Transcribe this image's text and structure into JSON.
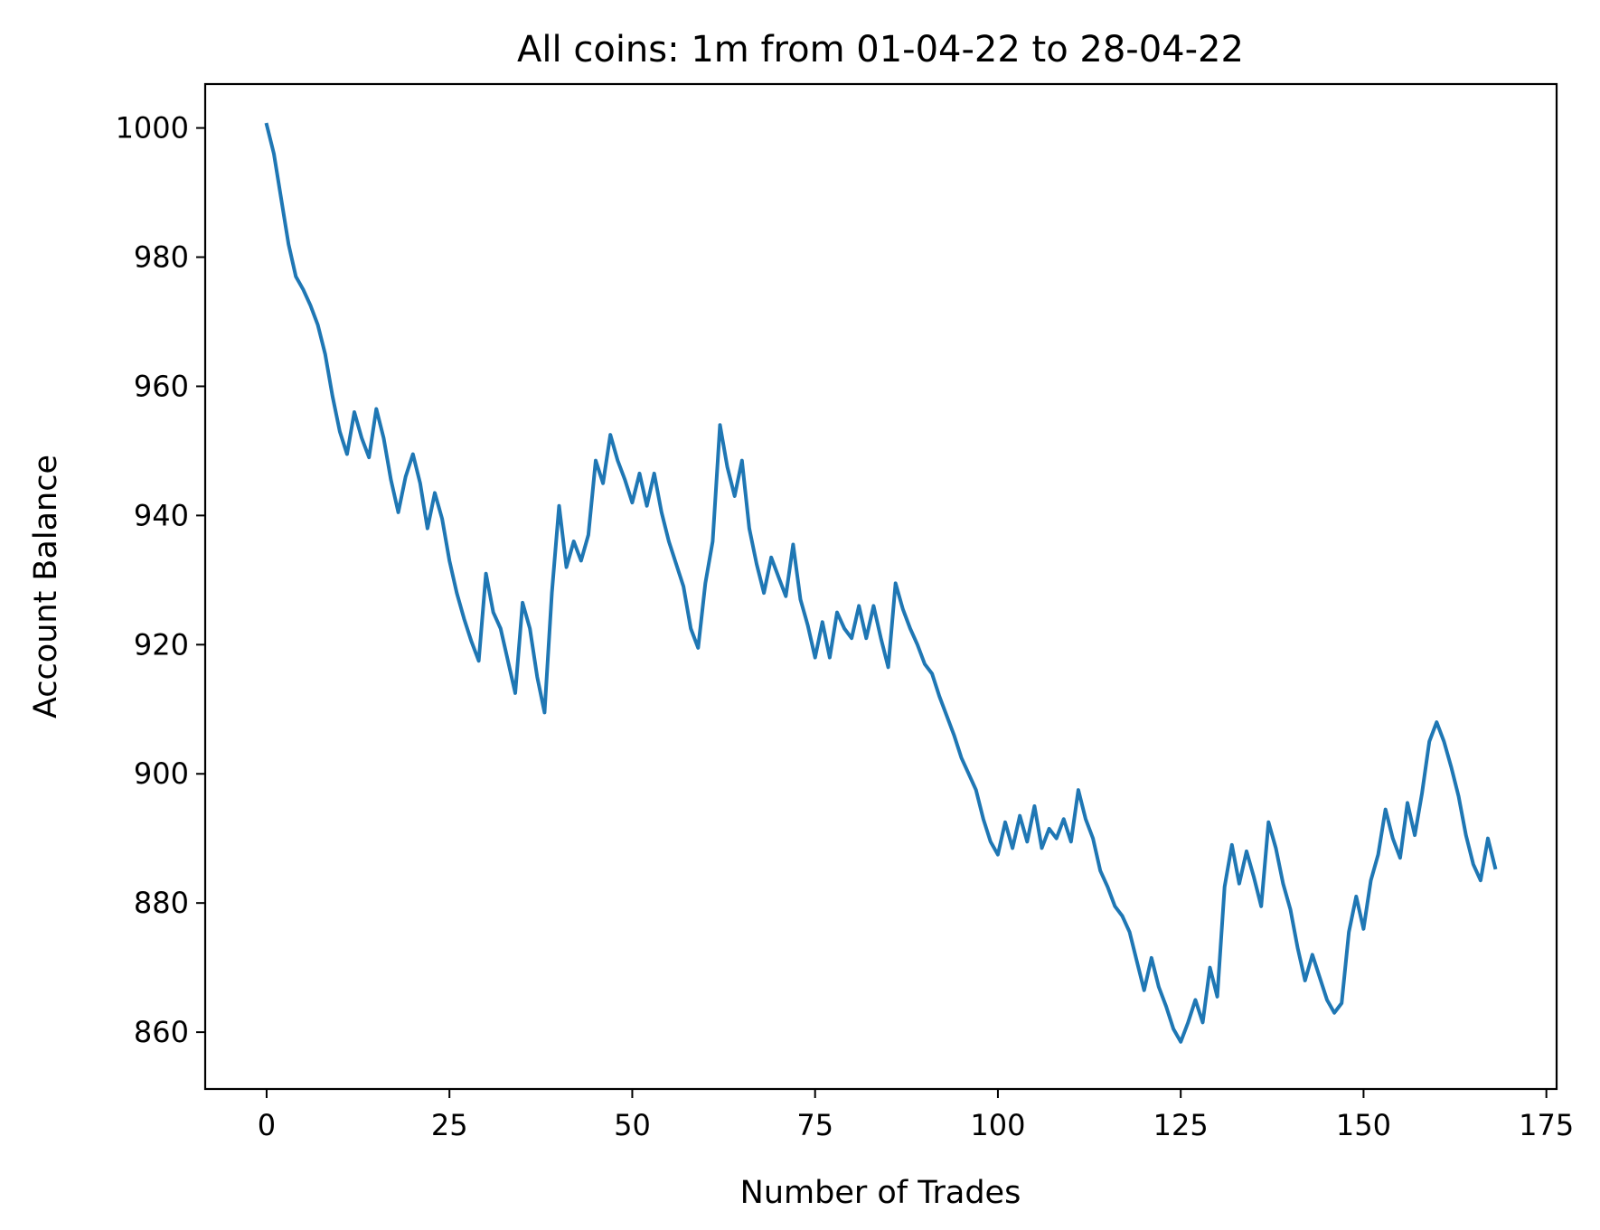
{
  "chart_data": {
    "type": "line",
    "title": "All coins: 1m from 01-04-22 to 28-04-22",
    "xlabel": "Number of Trades",
    "ylabel": "Account Balance",
    "xlim": [
      -8.4,
      176.4
    ],
    "ylim": [
      851.2,
      1006.8
    ],
    "xticks": [
      0,
      25,
      50,
      75,
      100,
      125,
      150,
      175
    ],
    "yticks": [
      860,
      880,
      900,
      920,
      940,
      960,
      980,
      1000
    ],
    "grid": false,
    "series": [
      {
        "color": "#1f77b4",
        "x": [
          0,
          1,
          2,
          3,
          4,
          5,
          6,
          7,
          8,
          9,
          10,
          11,
          12,
          13,
          14,
          15,
          16,
          17,
          18,
          19,
          20,
          21,
          22,
          23,
          24,
          25,
          26,
          27,
          28,
          29,
          30,
          31,
          32,
          33,
          34,
          35,
          36,
          37,
          38,
          39,
          40,
          41,
          42,
          43,
          44,
          45,
          46,
          47,
          48,
          49,
          50,
          51,
          52,
          53,
          54,
          55,
          56,
          57,
          58,
          59,
          60,
          61,
          62,
          63,
          64,
          65,
          66,
          67,
          68,
          69,
          70,
          71,
          72,
          73,
          74,
          75,
          76,
          77,
          78,
          79,
          80,
          81,
          82,
          83,
          84,
          85,
          86,
          87,
          88,
          89,
          90,
          91,
          92,
          93,
          94,
          95,
          96,
          97,
          98,
          99,
          100,
          101,
          102,
          103,
          104,
          105,
          106,
          107,
          108,
          109,
          110,
          111,
          112,
          113,
          114,
          115,
          116,
          117,
          118,
          119,
          120,
          121,
          122,
          123,
          124,
          125,
          126,
          127,
          128,
          129,
          130,
          131,
          132,
          133,
          134,
          135,
          136,
          137,
          138,
          139,
          140,
          141,
          142,
          143,
          144,
          145,
          146,
          147,
          148,
          149,
          150,
          151,
          152,
          153,
          154,
          155,
          156,
          157,
          158,
          159,
          160,
          161,
          162,
          163,
          164,
          165,
          166,
          167,
          168
        ],
        "y": [
          1000.5,
          996,
          989,
          982,
          977,
          975,
          972.5,
          969.5,
          965,
          958.5,
          953,
          949.5,
          956,
          952,
          949,
          956.5,
          952,
          945.5,
          940.5,
          946,
          949.5,
          945,
          938,
          943.5,
          939.5,
          933,
          928,
          924,
          920.5,
          917.5,
          931,
          925,
          922.5,
          917.5,
          912.5,
          926.5,
          922.5,
          915,
          909.5,
          928,
          941.5,
          932,
          936,
          933,
          937,
          948.5,
          945,
          952.5,
          948.5,
          945.5,
          942,
          946.5,
          941.5,
          946.5,
          940.5,
          936,
          932.5,
          929,
          922.5,
          919.5,
          929.5,
          936,
          954,
          947.5,
          943,
          948.5,
          938,
          932.5,
          928,
          933.5,
          930.5,
          927.5,
          935.5,
          927,
          923,
          918,
          923.5,
          918,
          925,
          922.5,
          921,
          926,
          921,
          926,
          921,
          916.5,
          929.5,
          925.5,
          922.5,
          920,
          917,
          915.5,
          912,
          909,
          906,
          902.5,
          900,
          897.5,
          893,
          889.5,
          887.5,
          892.5,
          888.5,
          893.5,
          889.5,
          895,
          888.5,
          891.5,
          890,
          893,
          889.5,
          897.5,
          893,
          890,
          885,
          882.5,
          879.5,
          878,
          875.5,
          871,
          866.5,
          871.5,
          867,
          864,
          860.5,
          858.5,
          861.5,
          865,
          861.5,
          870,
          865.5,
          882.5,
          889,
          883,
          888,
          884,
          879.5,
          892.5,
          888.5,
          883,
          879,
          873,
          868,
          872,
          868.5,
          865,
          863,
          864.5,
          875.5,
          881,
          876,
          883.5,
          887.5,
          894.5,
          890,
          887,
          895.5,
          890.5,
          897,
          905,
          908,
          905,
          901,
          896.5,
          890.5,
          886,
          883.5,
          890,
          885.5
        ]
      }
    ]
  }
}
